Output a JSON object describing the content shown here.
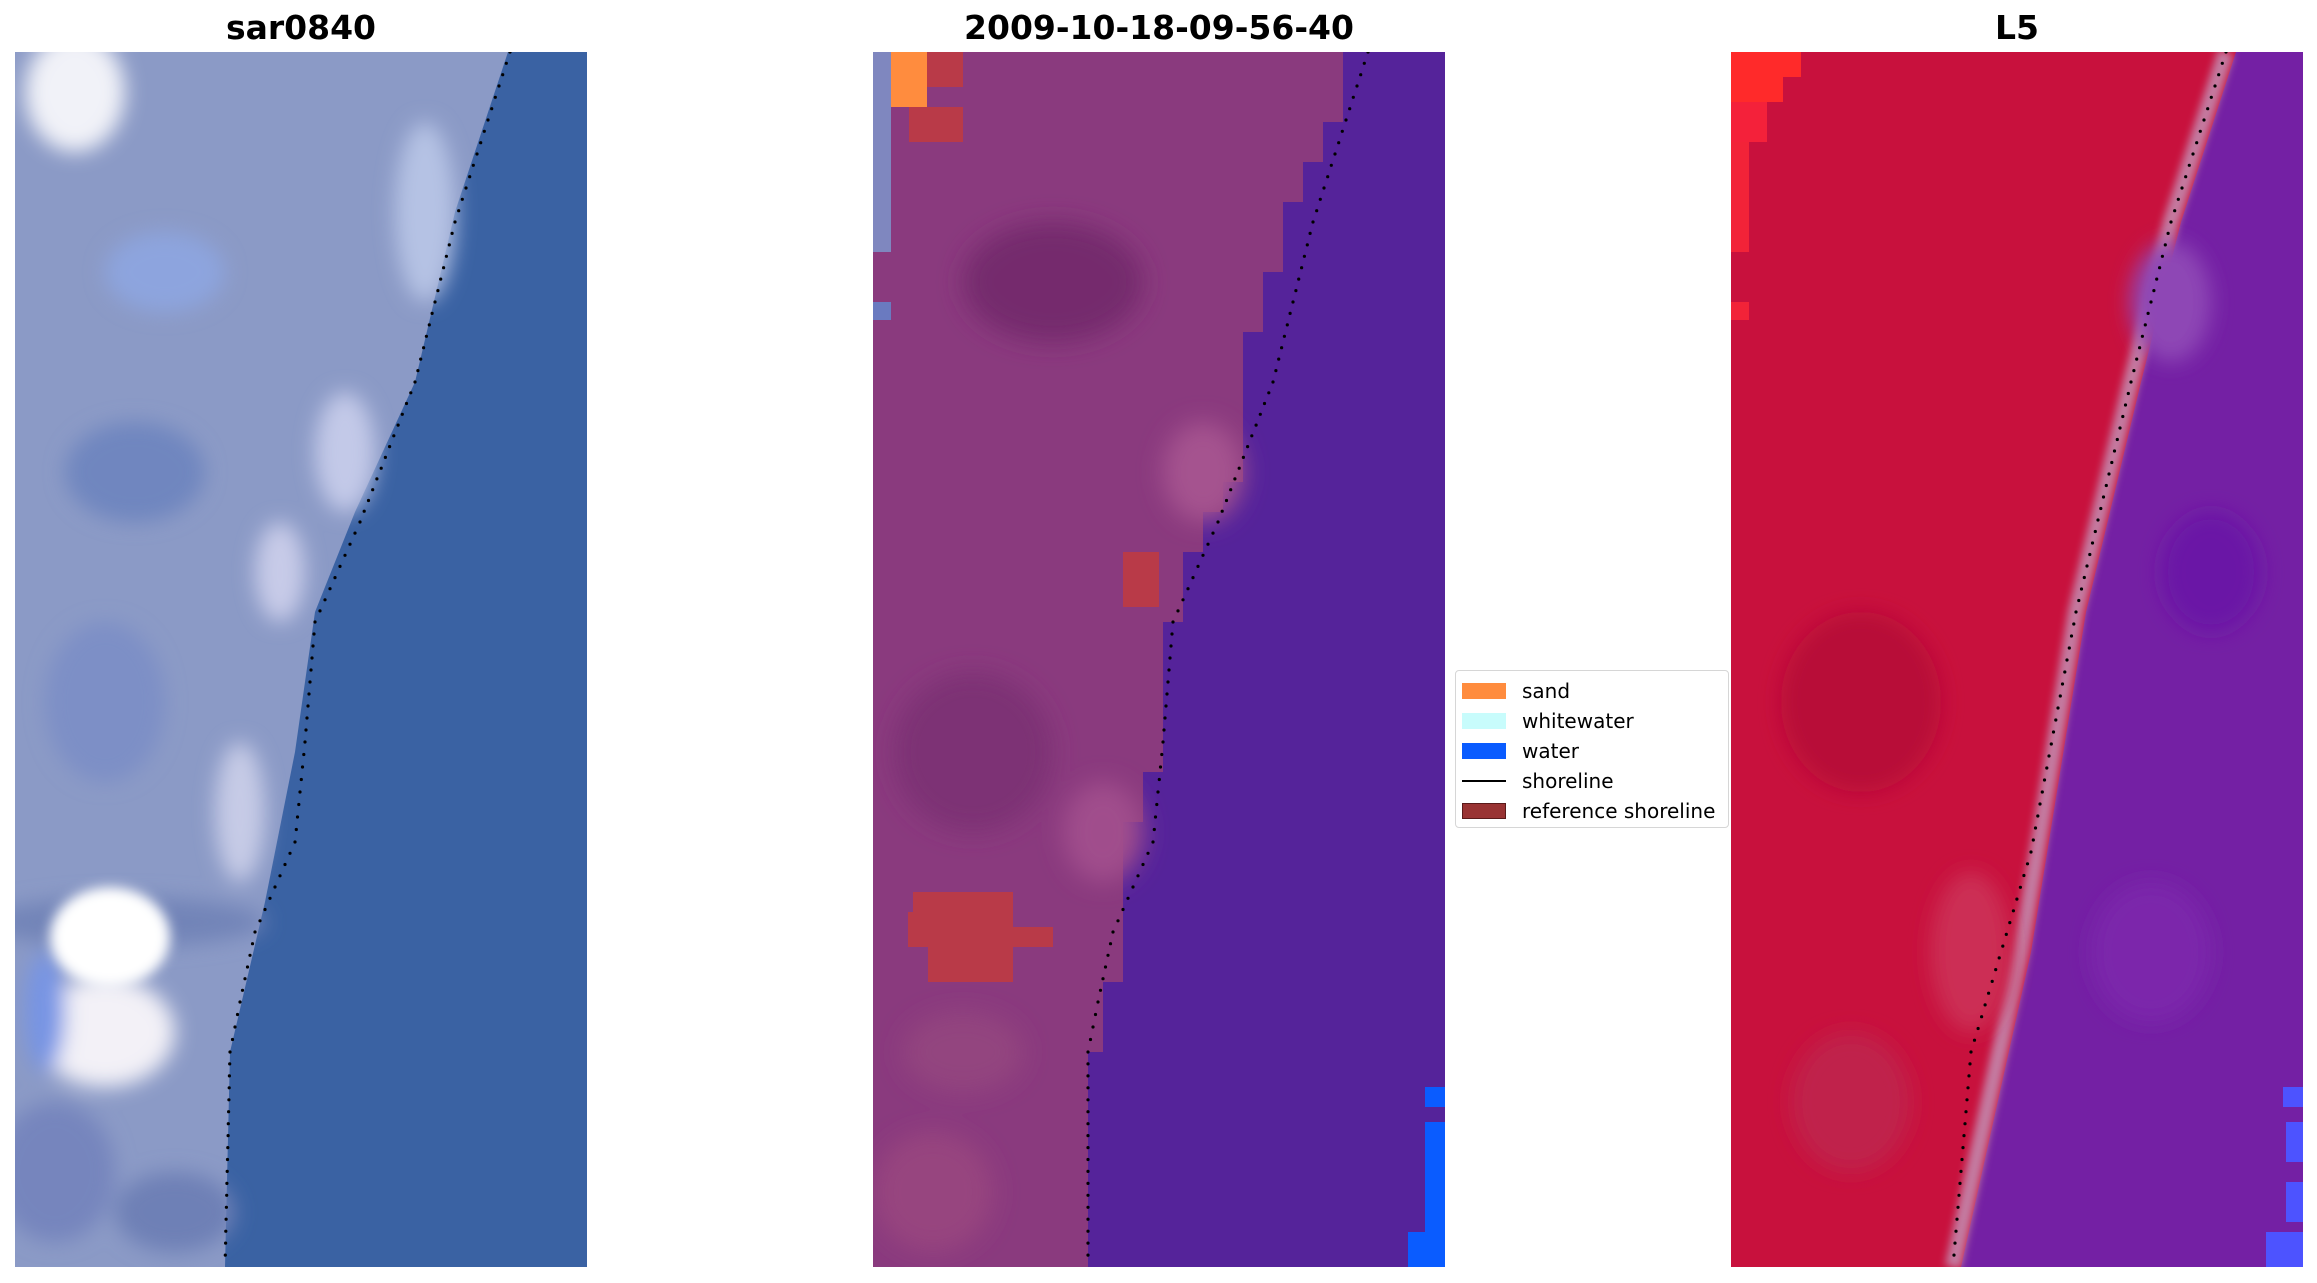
{
  "titles": {
    "left": "sar0840",
    "middle": "2009-10-18-09-56-40",
    "right": "L5"
  },
  "legend": {
    "items": [
      {
        "label": "sand",
        "kind": "patch",
        "color": "#ff8c3e"
      },
      {
        "label": "whitewater",
        "kind": "patch",
        "color": "#c8fcfc"
      },
      {
        "label": "water",
        "kind": "patch",
        "color": "#0a5cff"
      },
      {
        "label": "shoreline",
        "kind": "line",
        "color": "#000000"
      },
      {
        "label": "reference shoreline",
        "kind": "patch",
        "color": "#993333"
      }
    ]
  },
  "colors": {
    "rgb_land": "#8b9ac6",
    "rgb_sea": "#3a62a3",
    "rgb_whitewater": "#e9ecf6",
    "class_land": "#8a3a7e",
    "class_water": "#55239a",
    "class_reference": "#b93a48",
    "index_land": "#c8113d",
    "index_sea": "#7420a4",
    "index_transition": "#c47aa0"
  }
}
